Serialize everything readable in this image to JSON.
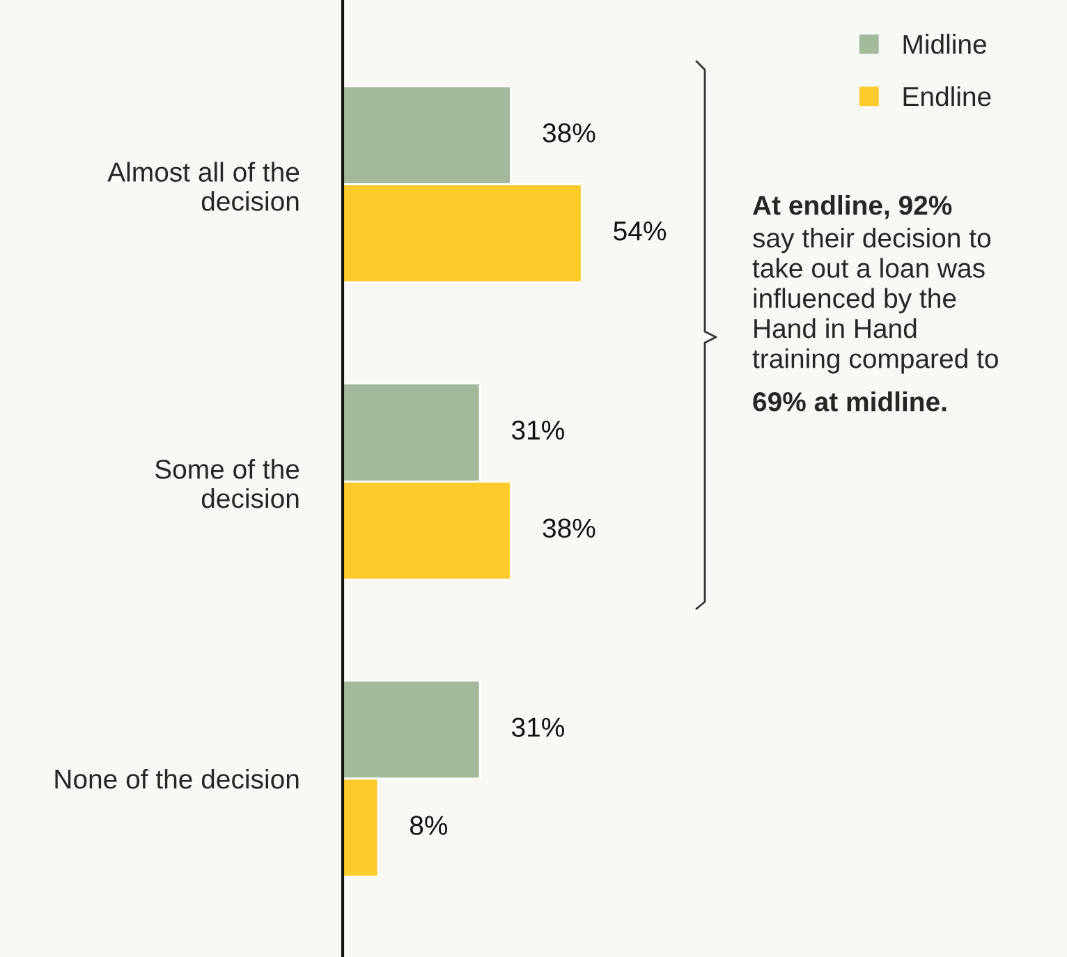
{
  "chart_data": {
    "type": "bar",
    "orientation": "horizontal",
    "categories": [
      "Almost all of the\ndecision",
      "Some of the\ndecision",
      "None of the decision"
    ],
    "series": [
      {
        "name": "Midline",
        "color": "#a3b99c",
        "values": [
          38,
          31,
          31
        ],
        "value_labels": [
          "38%",
          "31%",
          "31%"
        ]
      },
      {
        "name": "Endline",
        "color": "#ffca2c",
        "values": [
          54,
          38,
          8
        ],
        "value_labels": [
          "54%",
          "38%",
          "8%"
        ]
      }
    ],
    "legend": "top right",
    "grid": false,
    "tick_labels": "y",
    "annotations": [
      "At endline, 92%",
      "say their decision to\ntake out a loan was\ninfluenced by the\nHand in Hand\ntraining compared to",
      "69% at midline."
    ]
  }
}
